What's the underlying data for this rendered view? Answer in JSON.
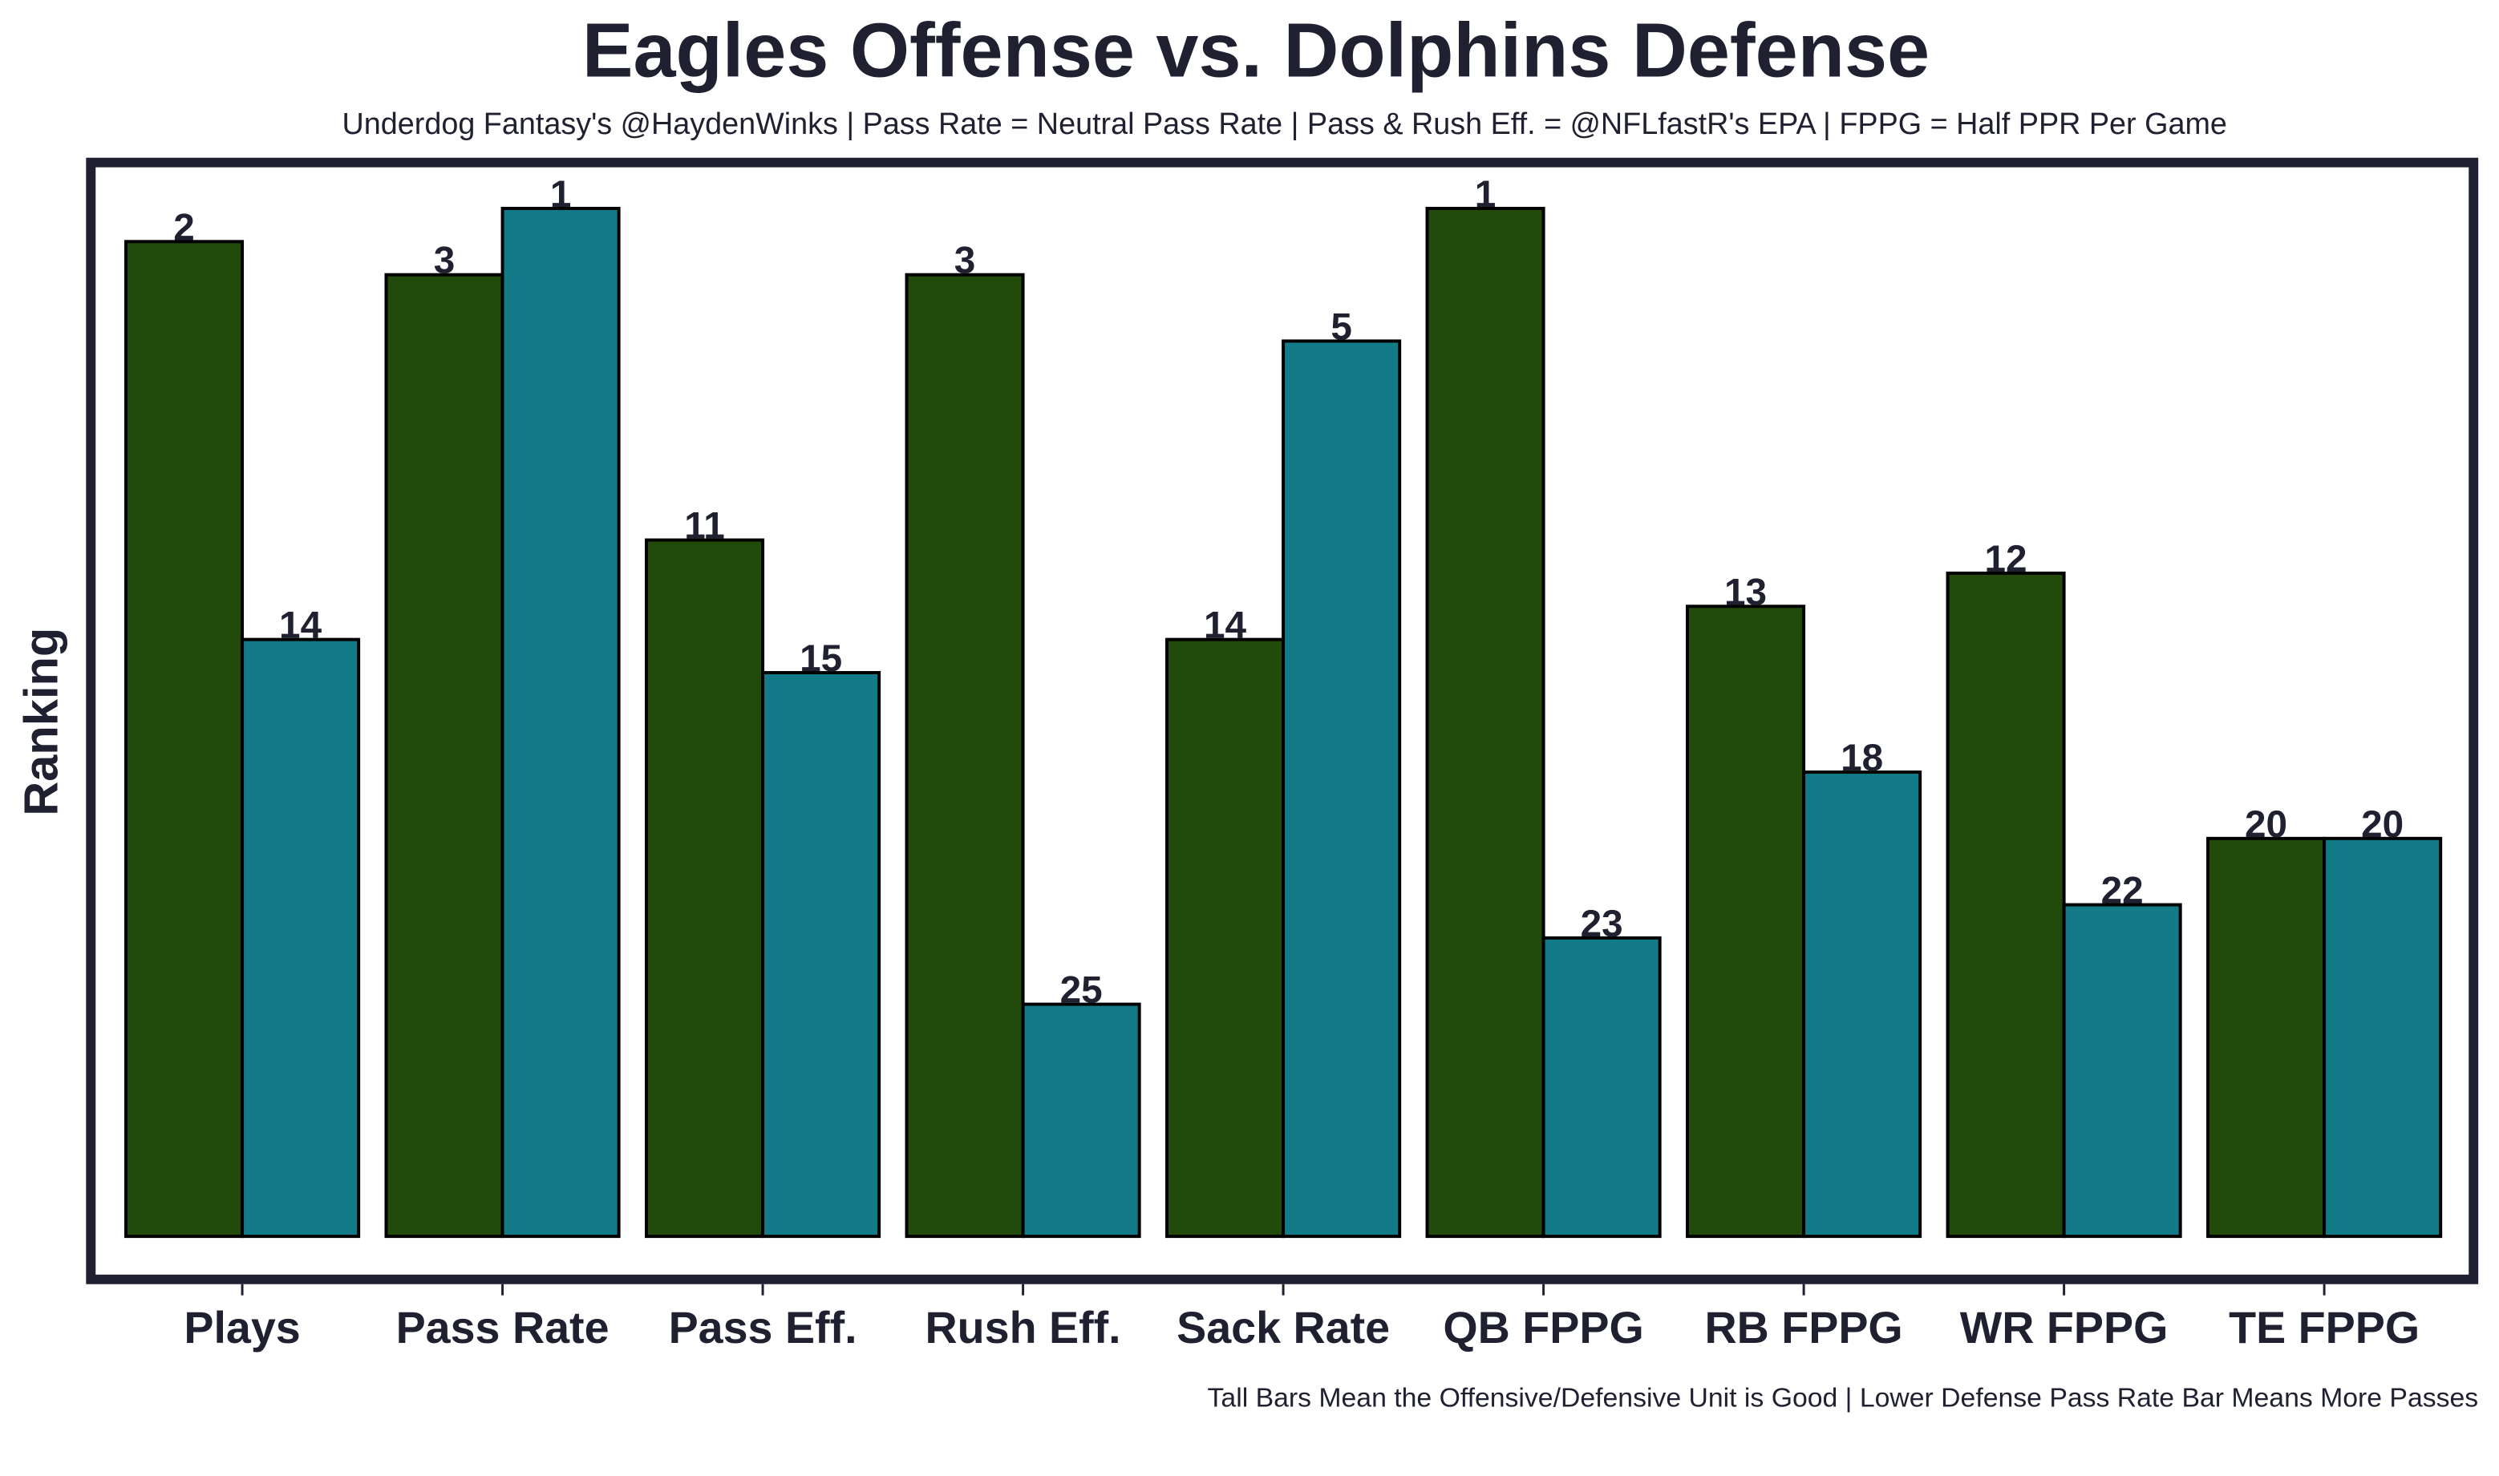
{
  "chart_data": {
    "type": "bar",
    "title": "Eagles Offense vs. Dolphins Defense",
    "subtitle": "Underdog Fantasy's @HaydenWinks | Pass Rate = Neutral Pass Rate | Pass & Rush Eff. = @NFLfastR's EPA | FPPG = Half PPR Per Game",
    "y_label": "Ranking",
    "footnote": "Tall Bars Mean the Offensive/Defensive Unit is Good | Lower Defense Pass Rate Bar Means More Passes",
    "categories": [
      "Plays",
      "Pass Rate",
      "Pass Eff.",
      "Rush Eff.",
      "Sack Rate",
      "QB FPPG",
      "RB FPPG",
      "WR FPPG",
      "TE FPPG"
    ],
    "series": [
      {
        "color": "#224a0a",
        "values": [
          2,
          3,
          11,
          3,
          14,
          1,
          13,
          12,
          20
        ]
      },
      {
        "color": "#127b87",
        "values": [
          14,
          1,
          15,
          25,
          5,
          23,
          18,
          22,
          20
        ]
      }
    ],
    "ylim": [
      32,
      0
    ]
  }
}
